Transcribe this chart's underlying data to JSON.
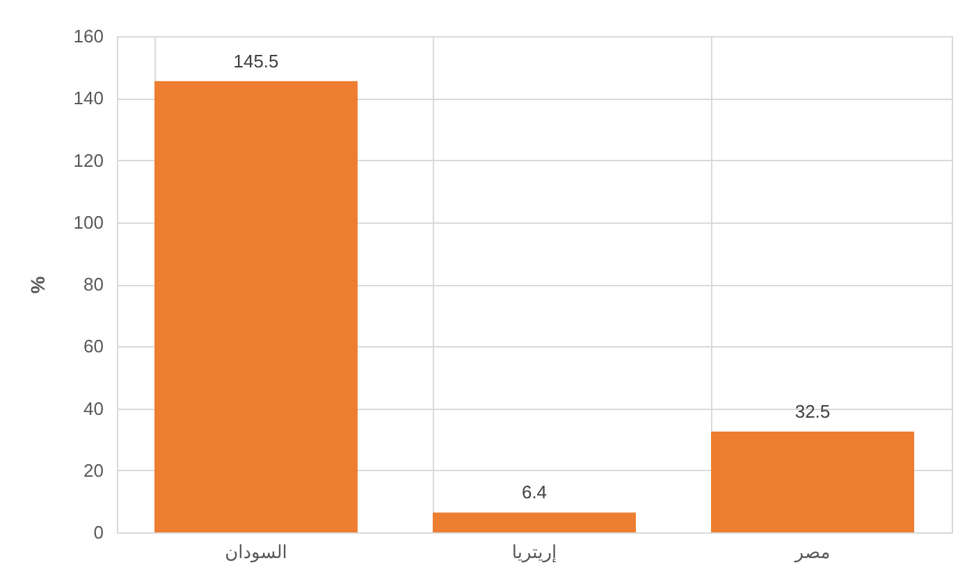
{
  "chart_data": {
    "type": "bar",
    "ylabel": "%",
    "categories": [
      "السودان",
      "إريتريا",
      "مصر"
    ],
    "values": [
      145.5,
      6.4,
      32.5
    ],
    "color": "#ed7d31",
    "ylim": [
      0,
      160
    ],
    "yticks": [
      0,
      20,
      40,
      60,
      80,
      100,
      120,
      140,
      160
    ],
    "grid": true,
    "data_labels": true
  }
}
